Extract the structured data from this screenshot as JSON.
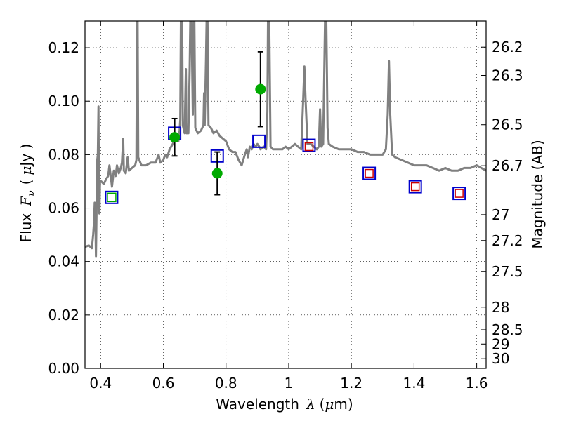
{
  "chart_data": {
    "type": "scatter",
    "title": "",
    "xlabel": {
      "prefix": "Wavelength",
      "symbol": "λ",
      "unit_open": "(",
      "unit_mu": "μ",
      "unit_rest": "m)"
    },
    "ylabel": {
      "prefix": "Flux",
      "symbol": "F",
      "subscript": "ν",
      "unit_open": "(",
      "unit_mu": "μ",
      "unit_rest": "Jy )"
    },
    "y2label": "Magnitude (AB)",
    "xlim": [
      0.35,
      1.63
    ],
    "ylim": [
      0.0,
      0.13
    ],
    "grid": true,
    "x_ticks": [
      {
        "v": 0.4,
        "label": "0.4"
      },
      {
        "v": 0.6,
        "label": "0.6"
      },
      {
        "v": 0.8,
        "label": "0.8"
      },
      {
        "v": 1.0,
        "label": "1"
      },
      {
        "v": 1.2,
        "label": "1.2"
      },
      {
        "v": 1.4,
        "label": "1.4"
      },
      {
        "v": 1.6,
        "label": "1.6"
      }
    ],
    "y_ticks": [
      {
        "v": 0.0,
        "label": "0.00"
      },
      {
        "v": 0.02,
        "label": "0.02"
      },
      {
        "v": 0.04,
        "label": "0.04"
      },
      {
        "v": 0.06,
        "label": "0.06"
      },
      {
        "v": 0.08,
        "label": "0.08"
      },
      {
        "v": 0.1,
        "label": "0.10"
      },
      {
        "v": 0.12,
        "label": "0.12"
      }
    ],
    "mag_ticks": [
      {
        "v": 26.2,
        "label": "26.2"
      },
      {
        "v": 26.3,
        "label": "26.3"
      },
      {
        "v": 26.5,
        "label": "26.5"
      },
      {
        "v": 26.7,
        "label": "26.7"
      },
      {
        "v": 27.0,
        "label": "27"
      },
      {
        "v": 27.2,
        "label": "27.2"
      },
      {
        "v": 27.5,
        "label": "27.5"
      },
      {
        "v": 28.0,
        "label": "28"
      },
      {
        "v": 28.5,
        "label": "28.5"
      },
      {
        "v": 29.0,
        "label": "29"
      },
      {
        "v": 30.0,
        "label": "30"
      }
    ],
    "series": [
      {
        "kind": "spectrum",
        "color": "#808080",
        "points": [
          [
            0.35,
            0.0455
          ],
          [
            0.362,
            0.046
          ],
          [
            0.372,
            0.045
          ],
          [
            0.376,
            0.05
          ],
          [
            0.379,
            0.055
          ],
          [
            0.381,
            0.062
          ],
          [
            0.383,
            0.058
          ],
          [
            0.385,
            0.042
          ],
          [
            0.387,
            0.06
          ],
          [
            0.389,
            0.078
          ],
          [
            0.391,
            0.08
          ],
          [
            0.393,
            0.098
          ],
          [
            0.394,
            0.078
          ],
          [
            0.396,
            0.058
          ],
          [
            0.398,
            0.07
          ],
          [
            0.402,
            0.07
          ],
          [
            0.41,
            0.069
          ],
          [
            0.418,
            0.071
          ],
          [
            0.424,
            0.072
          ],
          [
            0.428,
            0.076
          ],
          [
            0.432,
            0.072
          ],
          [
            0.436,
            0.068
          ],
          [
            0.442,
            0.074
          ],
          [
            0.448,
            0.072
          ],
          [
            0.452,
            0.076
          ],
          [
            0.458,
            0.073
          ],
          [
            0.464,
            0.075
          ],
          [
            0.468,
            0.077
          ],
          [
            0.472,
            0.086
          ],
          [
            0.474,
            0.074
          ],
          [
            0.48,
            0.073
          ],
          [
            0.486,
            0.079
          ],
          [
            0.49,
            0.074
          ],
          [
            0.5,
            0.075
          ],
          [
            0.51,
            0.076
          ],
          [
            0.514,
            0.078
          ],
          [
            0.516,
            0.13
          ],
          [
            0.518,
            0.13
          ],
          [
            0.52,
            0.079
          ],
          [
            0.53,
            0.076
          ],
          [
            0.545,
            0.076
          ],
          [
            0.56,
            0.077
          ],
          [
            0.575,
            0.077
          ],
          [
            0.585,
            0.08
          ],
          [
            0.59,
            0.077
          ],
          [
            0.6,
            0.078
          ],
          [
            0.606,
            0.08
          ],
          [
            0.612,
            0.079
          ],
          [
            0.62,
            0.082
          ],
          [
            0.63,
            0.084
          ],
          [
            0.64,
            0.087
          ],
          [
            0.648,
            0.085
          ],
          [
            0.652,
            0.089
          ],
          [
            0.654,
            0.093
          ],
          [
            0.656,
            0.13
          ],
          [
            0.66,
            0.13
          ],
          [
            0.662,
            0.091
          ],
          [
            0.668,
            0.088
          ],
          [
            0.672,
            0.112
          ],
          [
            0.674,
            0.088
          ],
          [
            0.68,
            0.088
          ],
          [
            0.684,
            0.112
          ],
          [
            0.686,
            0.13
          ],
          [
            0.69,
            0.13
          ],
          [
            0.694,
            0.095
          ],
          [
            0.697,
            0.13
          ],
          [
            0.699,
            0.13
          ],
          [
            0.702,
            0.09
          ],
          [
            0.71,
            0.088
          ],
          [
            0.72,
            0.089
          ],
          [
            0.728,
            0.091
          ],
          [
            0.73,
            0.103
          ],
          [
            0.732,
            0.091
          ],
          [
            0.736,
            0.115
          ],
          [
            0.738,
            0.13
          ],
          [
            0.741,
            0.13
          ],
          [
            0.744,
            0.091
          ],
          [
            0.752,
            0.09
          ],
          [
            0.76,
            0.088
          ],
          [
            0.77,
            0.089
          ],
          [
            0.78,
            0.087
          ],
          [
            0.79,
            0.086
          ],
          [
            0.8,
            0.085
          ],
          [
            0.81,
            0.082
          ],
          [
            0.82,
            0.081
          ],
          [
            0.83,
            0.081
          ],
          [
            0.84,
            0.078
          ],
          [
            0.85,
            0.076
          ],
          [
            0.86,
            0.08
          ],
          [
            0.866,
            0.082
          ],
          [
            0.87,
            0.079
          ],
          [
            0.876,
            0.083
          ],
          [
            0.882,
            0.082
          ],
          [
            0.888,
            0.084
          ],
          [
            0.894,
            0.083
          ],
          [
            0.9,
            0.084
          ],
          [
            0.906,
            0.083
          ],
          [
            0.91,
            0.082
          ],
          [
            0.92,
            0.083
          ],
          [
            0.928,
            0.082
          ],
          [
            0.932,
            0.096
          ],
          [
            0.934,
            0.13
          ],
          [
            0.938,
            0.13
          ],
          [
            0.942,
            0.083
          ],
          [
            0.95,
            0.082
          ],
          [
            0.96,
            0.082
          ],
          [
            0.97,
            0.082
          ],
          [
            0.98,
            0.082
          ],
          [
            0.99,
            0.083
          ],
          [
            1.0,
            0.082
          ],
          [
            1.01,
            0.083
          ],
          [
            1.02,
            0.084
          ],
          [
            1.03,
            0.083
          ],
          [
            1.04,
            0.082
          ],
          [
            1.046,
            0.1
          ],
          [
            1.05,
            0.113
          ],
          [
            1.054,
            0.1
          ],
          [
            1.06,
            0.084
          ],
          [
            1.07,
            0.084
          ],
          [
            1.08,
            0.083
          ],
          [
            1.09,
            0.082
          ],
          [
            1.096,
            0.083
          ],
          [
            1.1,
            0.097
          ],
          [
            1.104,
            0.083
          ],
          [
            1.11,
            0.084
          ],
          [
            1.116,
            0.13
          ],
          [
            1.12,
            0.13
          ],
          [
            1.124,
            0.09
          ],
          [
            1.128,
            0.084
          ],
          [
            1.14,
            0.083
          ],
          [
            1.16,
            0.082
          ],
          [
            1.18,
            0.082
          ],
          [
            1.2,
            0.082
          ],
          [
            1.22,
            0.081
          ],
          [
            1.24,
            0.081
          ],
          [
            1.26,
            0.08
          ],
          [
            1.28,
            0.08
          ],
          [
            1.3,
            0.08
          ],
          [
            1.31,
            0.082
          ],
          [
            1.316,
            0.095
          ],
          [
            1.32,
            0.115
          ],
          [
            1.324,
            0.095
          ],
          [
            1.33,
            0.08
          ],
          [
            1.34,
            0.079
          ],
          [
            1.36,
            0.078
          ],
          [
            1.38,
            0.077
          ],
          [
            1.4,
            0.076
          ],
          [
            1.42,
            0.076
          ],
          [
            1.44,
            0.076
          ],
          [
            1.46,
            0.075
          ],
          [
            1.48,
            0.074
          ],
          [
            1.5,
            0.075
          ],
          [
            1.52,
            0.074
          ],
          [
            1.54,
            0.074
          ],
          [
            1.56,
            0.075
          ],
          [
            1.58,
            0.075
          ],
          [
            1.6,
            0.076
          ],
          [
            1.615,
            0.075
          ],
          [
            1.63,
            0.074
          ]
        ]
      },
      {
        "kind": "observed",
        "color": "#00aa00",
        "points": [
          {
            "x": 0.435,
            "y": 0.064,
            "err": 0.0
          },
          {
            "x": 0.636,
            "y": 0.0865,
            "err": 0.007
          },
          {
            "x": 0.772,
            "y": 0.073,
            "err": 0.008
          },
          {
            "x": 0.91,
            "y": 0.1045,
            "err": 0.014
          }
        ]
      },
      {
        "kind": "model-blue",
        "color": "#0000cc",
        "points": [
          {
            "x": 0.435,
            "y": 0.064
          },
          {
            "x": 0.636,
            "y": 0.088
          },
          {
            "x": 0.772,
            "y": 0.0795
          },
          {
            "x": 0.905,
            "y": 0.085
          },
          {
            "x": 1.065,
            "y": 0.0835
          },
          {
            "x": 1.257,
            "y": 0.073
          },
          {
            "x": 1.404,
            "y": 0.068
          },
          {
            "x": 1.544,
            "y": 0.0655
          }
        ]
      },
      {
        "kind": "model-red",
        "color": "#cc0000",
        "points": [
          {
            "x": 1.065,
            "y": 0.083
          },
          {
            "x": 1.257,
            "y": 0.073
          },
          {
            "x": 1.404,
            "y": 0.068
          },
          {
            "x": 1.544,
            "y": 0.0655
          }
        ]
      }
    ]
  }
}
